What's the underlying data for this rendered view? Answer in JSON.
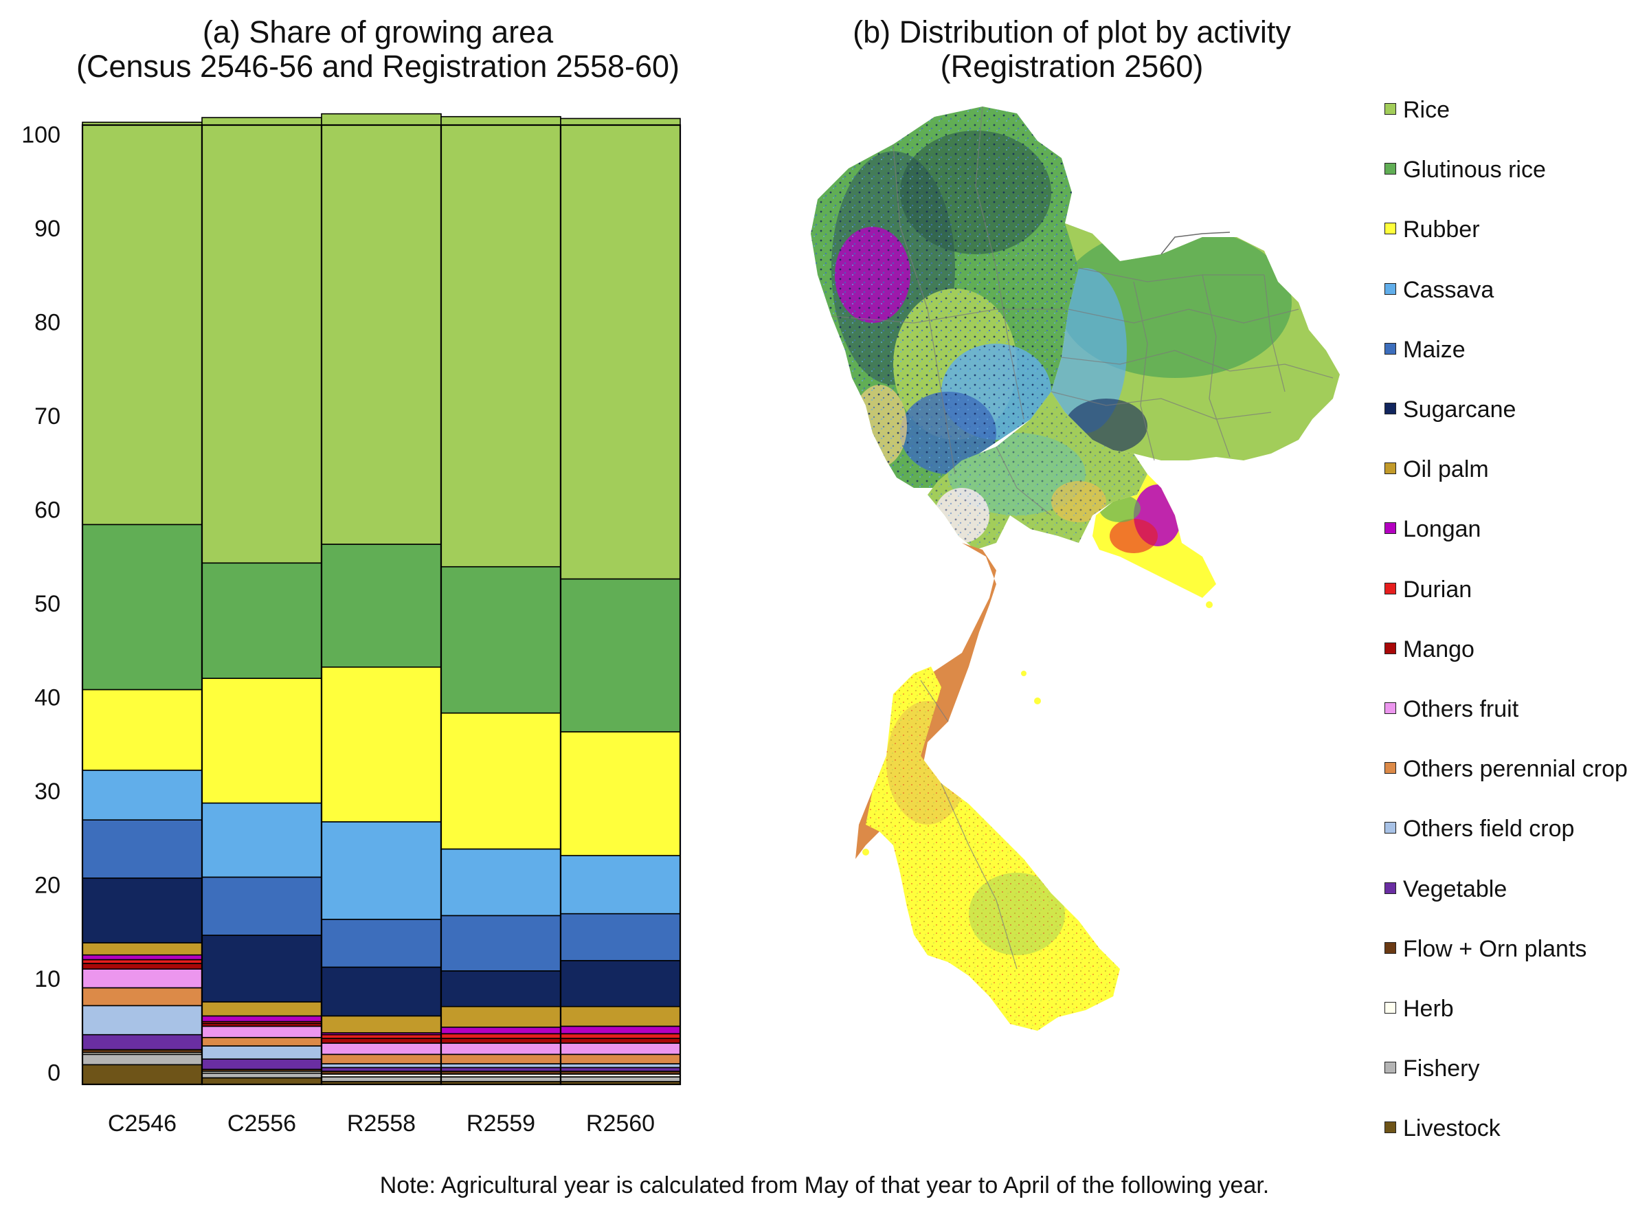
{
  "panel_a": {
    "title_line1": "(a) Share of growing area",
    "title_line2": "(Census 2546-56  and Registration 2558-60)"
  },
  "panel_b": {
    "title_line1": "(b) Distribution of plot by activity",
    "title_line2": "(Registration 2560)"
  },
  "note": "Note: Agricultural year is calculated from May of that year to April of the following year.",
  "legend": [
    {
      "label": "Rice",
      "color": "#a2cd5a"
    },
    {
      "label": "Glutinous rice",
      "color": "#61ae55"
    },
    {
      "label": "Rubber",
      "color": "#ffff3c"
    },
    {
      "label": "Cassava",
      "color": "#61aeea"
    },
    {
      "label": "Maize",
      "color": "#3d6ebc"
    },
    {
      "label": "Sugarcane",
      "color": "#12265e"
    },
    {
      "label": "Oil palm",
      "color": "#c29a2a"
    },
    {
      "label": "Longan",
      "color": "#b400c0"
    },
    {
      "label": "Durian",
      "color": "#e61e1e"
    },
    {
      "label": "Mango",
      "color": "#a80808"
    },
    {
      "label": "Others fruit",
      "color": "#ec96ee"
    },
    {
      "label": "Others perennial crop",
      "color": "#dc8a48"
    },
    {
      "label": "Others field crop",
      "color": "#a8c2e6"
    },
    {
      "label": "Vegetable",
      "color": "#6a2ea2"
    },
    {
      "label": "Flow + Orn plants",
      "color": "#6a3a14"
    },
    {
      "label": "Herb",
      "color": "#fffff0"
    },
    {
      "label": "Fishery",
      "color": "#b4b4b4"
    },
    {
      "label": "Livestock",
      "color": "#6e5418"
    }
  ],
  "chart_data": {
    "type": "bar",
    "stacked": true,
    "title": "(a) Share of growing area",
    "subtitle": "(Census 2546-56  and Registration 2558-60)",
    "categories": [
      "C2546",
      "C2556",
      "R2558",
      "R2559",
      "R2560"
    ],
    "ylim": [
      -1.3,
      101
    ],
    "yticks": [
      0,
      10,
      20,
      30,
      40,
      50,
      60,
      70,
      80,
      90,
      100
    ],
    "grid": false,
    "legend": "right",
    "series": [
      {
        "name": "Livestock",
        "values": [
          2.1,
          0.7,
          0.3,
          0.3,
          0.3
        ]
      },
      {
        "name": "Fishery",
        "values": [
          1.1,
          0.5,
          0.5,
          0.5,
          0.5
        ]
      },
      {
        "name": "Herb",
        "values": [
          0.2,
          0.2,
          0.3,
          0.3,
          0.3
        ]
      },
      {
        "name": "Flow + Orn plants",
        "values": [
          0.3,
          0.2,
          0.3,
          0.3,
          0.3
        ]
      },
      {
        "name": "Vegetable",
        "values": [
          1.6,
          1.1,
          0.4,
          0.4,
          0.4
        ]
      },
      {
        "name": "Others field crop",
        "values": [
          3.1,
          1.4,
          0.4,
          0.4,
          0.4
        ]
      },
      {
        "name": "Others perennial crop",
        "values": [
          1.9,
          0.9,
          1.0,
          1.0,
          1.0
        ]
      },
      {
        "name": "Others fruit",
        "values": [
          2.0,
          1.2,
          1.2,
          1.2,
          1.2
        ]
      },
      {
        "name": "Mango",
        "values": [
          0.6,
          0.3,
          0.5,
          0.5,
          0.5
        ]
      },
      {
        "name": "Durian",
        "values": [
          0.4,
          0.2,
          0.4,
          0.5,
          0.5
        ]
      },
      {
        "name": "Longan",
        "values": [
          0.5,
          0.6,
          0.2,
          0.7,
          0.8
        ]
      },
      {
        "name": "Oil palm",
        "values": [
          1.3,
          1.5,
          1.8,
          2.2,
          2.1
        ]
      },
      {
        "name": "Sugarcane",
        "values": [
          6.9,
          7.1,
          5.2,
          3.8,
          4.9
        ]
      },
      {
        "name": "Maize",
        "values": [
          6.2,
          6.2,
          5.1,
          5.9,
          5.0
        ]
      },
      {
        "name": "Cassava",
        "values": [
          5.3,
          7.9,
          10.4,
          7.1,
          6.2
        ]
      },
      {
        "name": "Rubber",
        "values": [
          8.6,
          13.3,
          16.5,
          14.5,
          13.2
        ]
      },
      {
        "name": "Glutinous rice",
        "values": [
          17.6,
          12.3,
          13.1,
          15.6,
          16.3
        ]
      },
      {
        "name": "Rice",
        "values": [
          42.9,
          47.5,
          45.9,
          48.0,
          49.1
        ]
      }
    ]
  }
}
